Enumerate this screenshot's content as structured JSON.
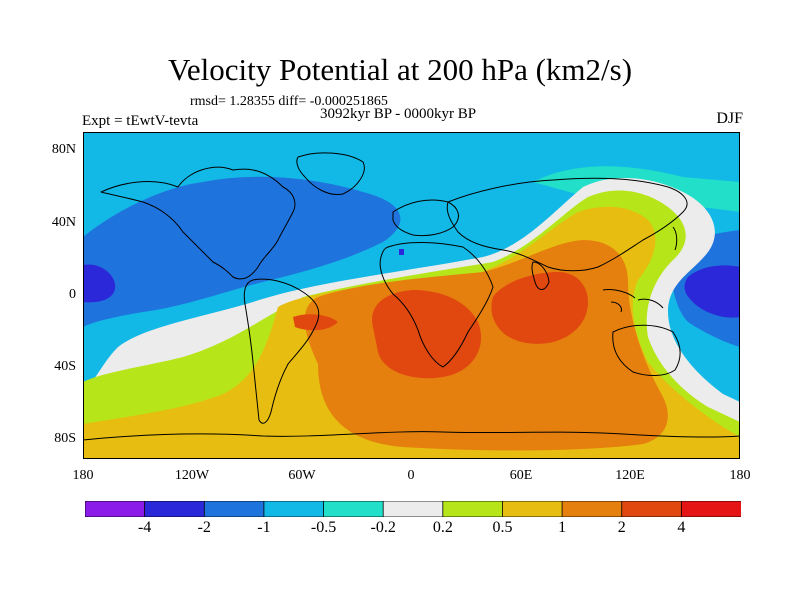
{
  "title": "Velocity Potential at 200 hPa (km2/s)",
  "stats": "rmsd= 1.28355 diff= -0.000251865",
  "period": "3092kyr BP - 0000kyr BP",
  "expt": "Expt = tEwtV-tevta",
  "season": "DJF",
  "lat_labels": [
    "80N",
    "40N",
    "0",
    "40S",
    "80S"
  ],
  "lon_labels": [
    "180",
    "120W",
    "60W",
    "0",
    "60E",
    "120E",
    "180"
  ],
  "colorbar": {
    "labels": [
      "-4",
      "-2",
      "-1",
      "-0.5",
      "-0.2",
      "0.2",
      "0.5",
      "1",
      "2",
      "4"
    ],
    "colors": [
      "#8a1be8",
      "#2a28d8",
      "#1f73dc",
      "#12b9e6",
      "#21dfc8",
      "#ececec",
      "#b6e619",
      "#e6bd10",
      "#e5800f",
      "#e0480f",
      "#e51515"
    ]
  }
}
